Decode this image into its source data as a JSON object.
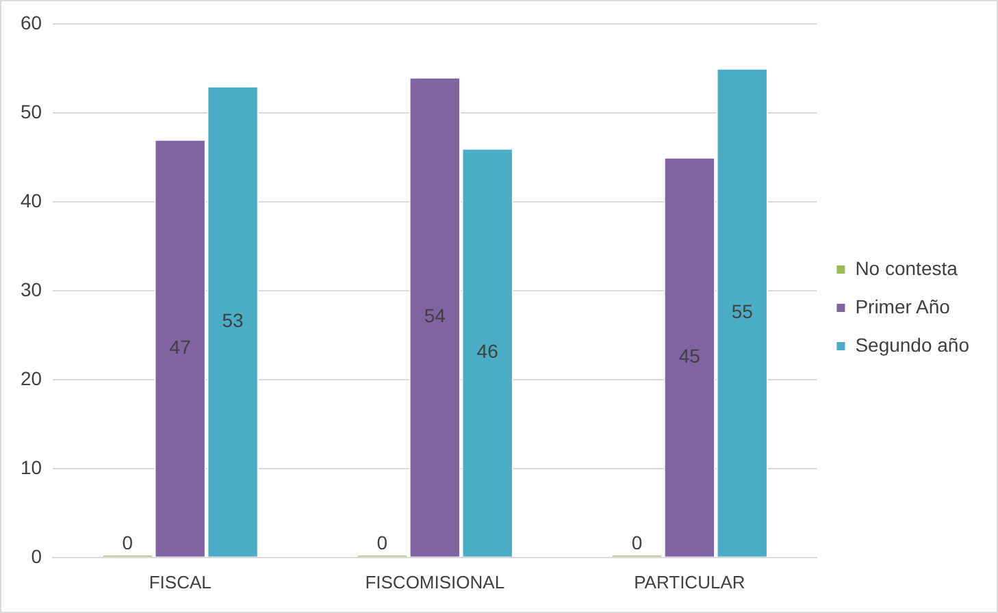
{
  "chart_data": {
    "type": "bar",
    "categories": [
      "FISCAL",
      "FISCOMISIONAL",
      "PARTICULAR"
    ],
    "series": [
      {
        "name": "No contesta",
        "color": "#9bbb59",
        "values": [
          0,
          0,
          0
        ]
      },
      {
        "name": "Primer Año",
        "color": "#8064a2",
        "values": [
          47,
          54,
          45
        ]
      },
      {
        "name": "Segundo año",
        "color": "#4bacc6",
        "values": [
          53,
          46,
          55
        ]
      }
    ],
    "ylim": [
      0,
      60
    ],
    "yticks": [
      0,
      10,
      20,
      30,
      40,
      50,
      60
    ],
    "grid": "y",
    "legend": "right",
    "data_labels": true
  }
}
